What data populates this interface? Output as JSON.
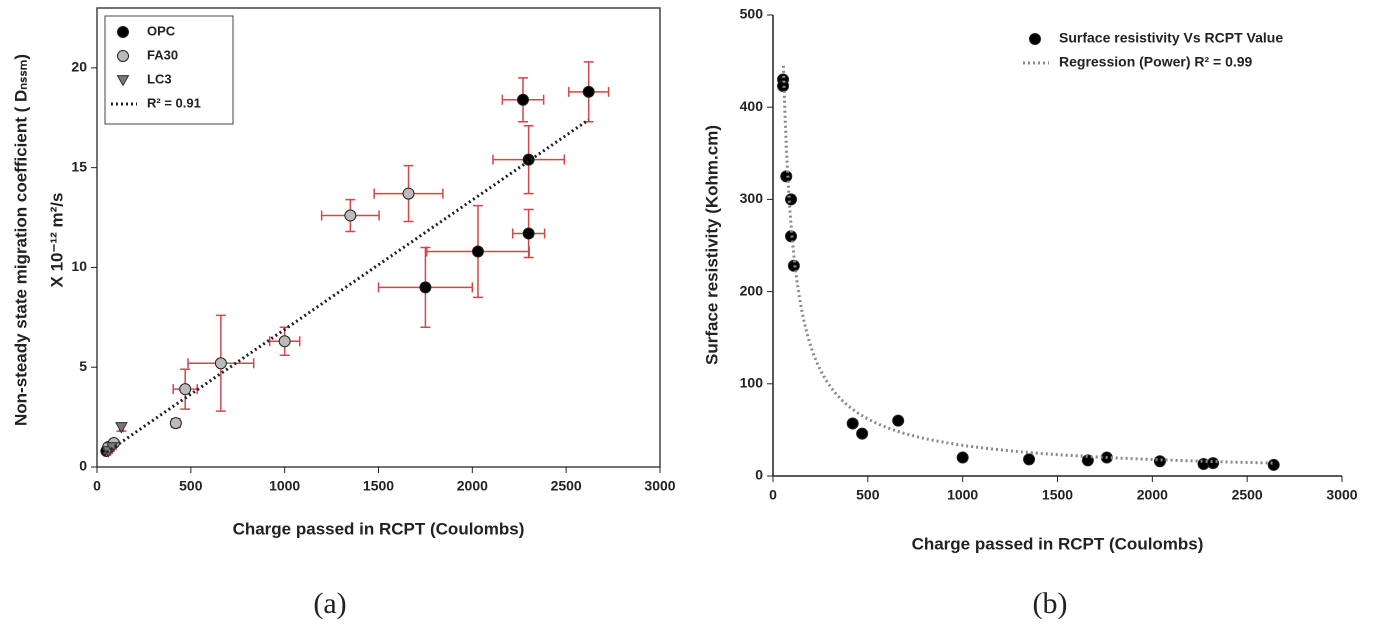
{
  "chart_data": [
    {
      "type": "scatter",
      "caption": "(a)",
      "xlabel": "Charge passed in RCPT (Coulombs)",
      "ylabel": "Non-steady state migration coefficient ( Dₙₛₛₘ)",
      "ylabel2": "X 10⁻¹² m²/s",
      "xlim": [
        0,
        3000
      ],
      "xticks": [
        0,
        500,
        1000,
        1500,
        2000,
        2500,
        3000
      ],
      "ylim": [
        0,
        23
      ],
      "yticks": [
        0,
        5,
        10,
        15,
        20
      ],
      "legend": "upper left",
      "errorbar_color": "#d04848",
      "series": [
        {
          "name": "OPC",
          "color": "#000000",
          "marker": "circle",
          "x": [
            2270,
            2620,
            2300,
            2300,
            2030,
            1750,
            50,
            70
          ],
          "values": [
            18.4,
            18.8,
            15.4,
            11.7,
            10.8,
            9.0,
            0.8,
            1.0
          ],
          "xerr": [
            110,
            106,
            190,
            85,
            273,
            250,
            10,
            10
          ],
          "yerr": [
            1.1,
            1.5,
            1.7,
            1.2,
            2.3,
            2.0,
            0.1,
            0.1
          ]
        },
        {
          "name": "FA30",
          "color": "#bbbbbb",
          "marker": "circle",
          "x": [
            1350,
            1660,
            1000,
            660,
            470,
            420,
            60,
            90
          ],
          "values": [
            12.6,
            13.7,
            6.3,
            5.2,
            3.9,
            2.2,
            1.0,
            1.2
          ],
          "xerr": [
            153,
            183,
            80,
            175,
            64,
            20,
            10,
            10
          ],
          "yerr": [
            0.8,
            1.4,
            0.7,
            2.4,
            1.0,
            0.2,
            0.1,
            0.1
          ]
        },
        {
          "name": "LC3",
          "color": "#777777",
          "marker": "triangle",
          "x": [
            60,
            80,
            130
          ],
          "values": [
            0.8,
            1.0,
            2.0
          ],
          "xerr": [
            10,
            10,
            10
          ],
          "yerr": [
            0.1,
            0.1,
            0.2
          ]
        },
        {
          "name": "R² = 0.91",
          "style": "dotted",
          "color": "#222222",
          "x": [
            30,
            2620
          ],
          "values": [
            0.6,
            17.4
          ]
        }
      ]
    },
    {
      "type": "scatter",
      "caption": "(b)",
      "xlabel": "Charge passed in RCPT (Coulombs)",
      "ylabel": "Surface resistivity (Kohm.cm)",
      "xlim": [
        0,
        3000
      ],
      "xticks": [
        0,
        500,
        1000,
        1500,
        2000,
        2500,
        3000
      ],
      "ylim": [
        0,
        500
      ],
      "yticks": [
        0,
        100,
        200,
        300,
        400,
        500
      ],
      "legend": "upper right",
      "series": [
        {
          "name": "Surface resistivity Vs RCPT Value",
          "color": "#000000",
          "marker": "circle",
          "x": [
            53,
            53,
            70,
            95,
            95,
            110,
            420,
            470,
            660,
            1000,
            1350,
            1660,
            1760,
            2040,
            2270,
            2320,
            2640
          ],
          "values": [
            430,
            423,
            325,
            300,
            260,
            228,
            57,
            46,
            60,
            20,
            18,
            17,
            20,
            16,
            13,
            14,
            12
          ]
        },
        {
          "name": "Regression (Power) R² = 0.99",
          "style": "dotted",
          "color": "#888888",
          "fit": "power",
          "a": 15975,
          "b": -0.8936,
          "x": [
            55,
            2640
          ]
        }
      ]
    }
  ]
}
